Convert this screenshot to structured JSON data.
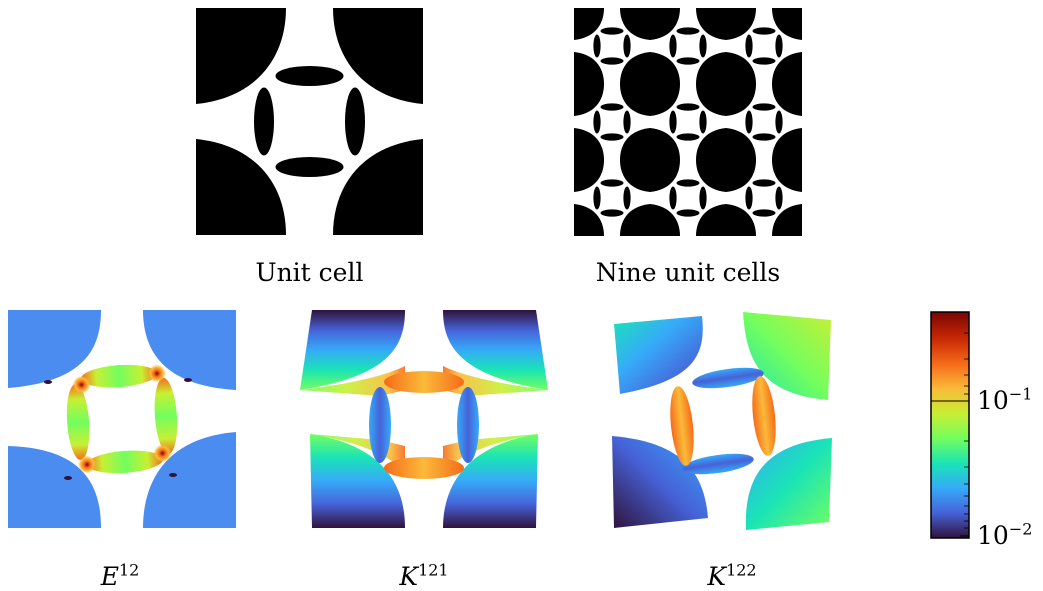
{
  "top": {
    "unit_cell_caption": "Unit cell",
    "nine_cells_caption": "Nine unit cells"
  },
  "bottom": {
    "e12": {
      "base": "E",
      "sup": "12"
    },
    "k121": {
      "base": "K",
      "sup": "121"
    },
    "k122": {
      "base": "K",
      "sup": "122"
    }
  },
  "colorbar": {
    "scale": "log",
    "ticks": [
      {
        "base": "10",
        "exp": "−1"
      },
      {
        "base": "10",
        "exp": "−2"
      }
    ],
    "colors": [
      "#30123b",
      "#4662d7",
      "#36aaf9",
      "#1ae4b6",
      "#72fe5e",
      "#c8ef34",
      "#faba39",
      "#f66b19",
      "#ca2a04",
      "#7a0403"
    ]
  }
}
